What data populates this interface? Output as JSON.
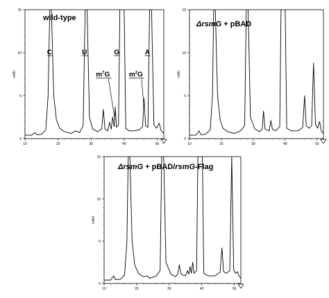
{
  "chart_data": [
    {
      "type": "line",
      "title": "wild-type",
      "ylabel": "mAU",
      "xlim": [
        10,
        52
      ],
      "ylim": [
        0,
        15
      ],
      "x_ticks": [
        "10",
        "20",
        "30",
        "40",
        "50"
      ],
      "y_ticks": [
        "0",
        "5",
        "10",
        "15"
      ],
      "peak_labels": [
        {
          "text": "C",
          "x": 17.5,
          "y": 9.8
        },
        {
          "text": "U",
          "x": 28.3,
          "y": 9.8
        },
        {
          "text": "m7G",
          "x": 34.2,
          "y": 7.2
        },
        {
          "text": "G",
          "x": 38.0,
          "y": 9.8
        },
        {
          "text": "m2G",
          "x": 44.2,
          "y": 7.2
        },
        {
          "text": "A",
          "x": 47.3,
          "y": 9.8
        }
      ],
      "series": [
        {
          "points": [
            [
              10,
              0.4
            ],
            [
              12,
              0.4
            ],
            [
              13,
              0.7
            ],
            [
              13.6,
              0.45
            ],
            [
              15,
              0.5
            ],
            [
              16.3,
              1.0
            ],
            [
              17.0,
              5.0
            ],
            [
              17.5,
              15
            ],
            [
              18.0,
              15
            ],
            [
              18.7,
              5.0
            ],
            [
              19.5,
              2.2
            ],
            [
              20.5,
              1.2
            ],
            [
              22,
              0.8
            ],
            [
              24,
              0.6
            ],
            [
              25.3,
              0.9
            ],
            [
              26.5,
              0.7
            ],
            [
              27.6,
              1.5
            ],
            [
              28.2,
              15
            ],
            [
              28.8,
              15
            ],
            [
              29.5,
              2.5
            ],
            [
              30.5,
              1.1
            ],
            [
              32,
              0.8
            ],
            [
              33.2,
              1.1
            ],
            [
              33.7,
              3.4
            ],
            [
              34.2,
              1.1
            ],
            [
              35,
              0.9
            ],
            [
              35.6,
              1.9
            ],
            [
              36.1,
              1.1
            ],
            [
              36.5,
              2.5
            ],
            [
              37.0,
              1.4
            ],
            [
              37.3,
              3.7
            ],
            [
              37.7,
              1.3
            ],
            [
              38.3,
              1.6
            ],
            [
              38.7,
              15
            ],
            [
              40.0,
              15
            ],
            [
              40.5,
              1.2
            ],
            [
              41.5,
              0.9
            ],
            [
              43,
              0.9
            ],
            [
              44.5,
              1.0
            ],
            [
              45.6,
              1.4
            ],
            [
              46.0,
              4.7
            ],
            [
              46.5,
              1.5
            ],
            [
              47.2,
              1.3
            ],
            [
              47.7,
              15
            ],
            [
              48.3,
              15
            ],
            [
              49.0,
              1.6
            ],
            [
              49.8,
              1.2
            ],
            [
              50.6,
              1.8
            ],
            [
              51.2,
              0.9
            ],
            [
              52,
              0.6
            ]
          ]
        }
      ]
    },
    {
      "type": "line",
      "title": "ΔrsmG + pBAD",
      "ylabel": "mAU",
      "xlim": [
        10,
        52
      ],
      "ylim": [
        0,
        15
      ],
      "x_ticks": [
        "10",
        "20",
        "30",
        "40",
        "50"
      ],
      "y_ticks": [
        "0",
        "5",
        "10",
        "15"
      ],
      "series": [
        {
          "points": [
            [
              10,
              0.4
            ],
            [
              12,
              0.4
            ],
            [
              13,
              0.9
            ],
            [
              13.6,
              0.45
            ],
            [
              15,
              0.5
            ],
            [
              16.5,
              1.0
            ],
            [
              17.2,
              5.0
            ],
            [
              17.6,
              15
            ],
            [
              18.1,
              15
            ],
            [
              18.8,
              5.0
            ],
            [
              19.6,
              2.2
            ],
            [
              20.5,
              1.2
            ],
            [
              22,
              0.8
            ],
            [
              24,
              0.6
            ],
            [
              26,
              0.9
            ],
            [
              27.3,
              1.5
            ],
            [
              27.8,
              15
            ],
            [
              28.4,
              15
            ],
            [
              29.1,
              2.5
            ],
            [
              30.5,
              1.1
            ],
            [
              32,
              0.8
            ],
            [
              32.8,
              1.1
            ],
            [
              33.2,
              3.2
            ],
            [
              33.7,
              1.1
            ],
            [
              35,
              0.9
            ],
            [
              35.5,
              2.1
            ],
            [
              36.0,
              1.1
            ],
            [
              37,
              0.9
            ],
            [
              38.3,
              1.4
            ],
            [
              38.7,
              15
            ],
            [
              40.0,
              15
            ],
            [
              40.5,
              1.2
            ],
            [
              42,
              0.9
            ],
            [
              44,
              0.9
            ],
            [
              45.5,
              1.3
            ],
            [
              46.1,
              5.0
            ],
            [
              46.6,
              1.5
            ],
            [
              47.5,
              1.2
            ],
            [
              48.3,
              1.5
            ],
            [
              48.9,
              8.8
            ],
            [
              49.5,
              1.6
            ],
            [
              50.2,
              1.2
            ],
            [
              50.8,
              2.0
            ],
            [
              51.3,
              0.9
            ],
            [
              52,
              0.6
            ]
          ]
        }
      ]
    },
    {
      "type": "line",
      "title": "ΔrsmG + pBAD/rsmG-Flag",
      "ylabel": "mAU",
      "xlim": [
        10,
        52
      ],
      "ylim": [
        0,
        15
      ],
      "x_ticks": [
        "10",
        "20",
        "30",
        "40",
        "50"
      ],
      "y_ticks": [
        "0",
        "5",
        "10",
        "15"
      ],
      "series": [
        {
          "points": [
            [
              10,
              0.4
            ],
            [
              12,
              0.4
            ],
            [
              12.9,
              0.9
            ],
            [
              13.5,
              0.45
            ],
            [
              15,
              0.5
            ],
            [
              16.3,
              1.0
            ],
            [
              17.0,
              5.0
            ],
            [
              17.4,
              15
            ],
            [
              17.9,
              15
            ],
            [
              18.6,
              5.0
            ],
            [
              19.4,
              2.2
            ],
            [
              20.5,
              1.2
            ],
            [
              22,
              0.8
            ],
            [
              23.3,
              0.9
            ],
            [
              24,
              0.6
            ],
            [
              26,
              0.9
            ],
            [
              27.2,
              1.5
            ],
            [
              27.7,
              15
            ],
            [
              28.3,
              15
            ],
            [
              29.0,
              2.5
            ],
            [
              30.5,
              1.1
            ],
            [
              32,
              0.8
            ],
            [
              32.6,
              1.1
            ],
            [
              33.1,
              2.2
            ],
            [
              33.6,
              1.1
            ],
            [
              35,
              0.9
            ],
            [
              35.6,
              1.5
            ],
            [
              36.0,
              1.1
            ],
            [
              36.4,
              2.0
            ],
            [
              36.8,
              1.2
            ],
            [
              37.2,
              2.5
            ],
            [
              37.6,
              1.2
            ],
            [
              38.4,
              1.5
            ],
            [
              38.8,
              15
            ],
            [
              40.2,
              15
            ],
            [
              40.6,
              1.2
            ],
            [
              42,
              0.9
            ],
            [
              44,
              0.9
            ],
            [
              45.6,
              1.3
            ],
            [
              46.2,
              4.2
            ],
            [
              46.7,
              1.4
            ],
            [
              47.5,
              1.2
            ],
            [
              48.6,
              1.5
            ],
            [
              49.2,
              15
            ],
            [
              49.8,
              1.6
            ],
            [
              50.4,
              1.2
            ],
            [
              51.0,
              1.4
            ],
            [
              51.4,
              0.9
            ],
            [
              52,
              0.6
            ]
          ]
        }
      ]
    }
  ]
}
